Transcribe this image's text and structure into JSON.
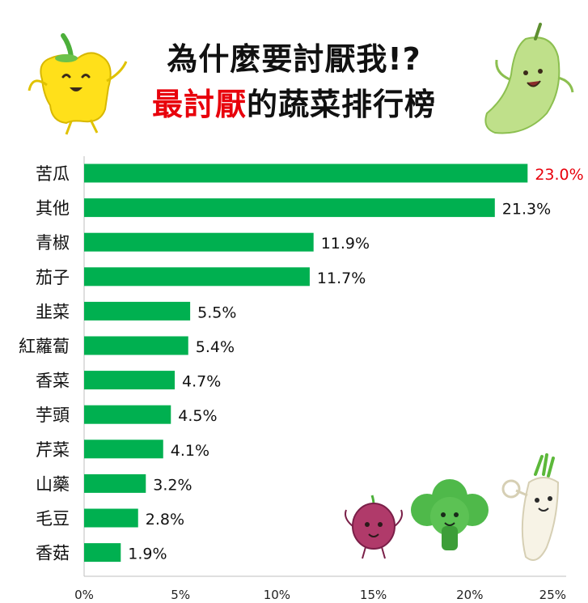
{
  "title": {
    "line1": "為什麼要討厭我!?",
    "line2_highlight": "最討厭",
    "line2_rest": "的蔬菜排行榜"
  },
  "colors": {
    "bar": "#00b050",
    "highlight_label": "#e8000b",
    "title_highlight": "#e8000b",
    "axis": "#bfbfbf"
  },
  "chart_data": {
    "type": "bar",
    "orientation": "horizontal",
    "categories": [
      "苦瓜",
      "其他",
      "青椒",
      "茄子",
      "韭菜",
      "紅蘿蔔",
      "香菜",
      "芋頭",
      "芹菜",
      "山藥",
      "毛豆",
      "香菇"
    ],
    "values": [
      23.0,
      21.3,
      11.9,
      11.7,
      5.5,
      5.4,
      4.7,
      4.5,
      4.1,
      3.2,
      2.8,
      1.9
    ],
    "data_labels": [
      "23.0%",
      "21.3%",
      "11.9%",
      "11.7%",
      "5.5%",
      "5.4%",
      "4.7%",
      "4.5%",
      "4.1%",
      "3.2%",
      "2.8%",
      "1.9%"
    ],
    "highlight_index": 0,
    "xlim": [
      0,
      25
    ],
    "xticks": [
      0,
      5,
      10,
      15,
      20,
      25
    ],
    "xtick_labels": [
      "0%",
      "5%",
      "10%",
      "15%",
      "20%",
      "25%"
    ],
    "grid": false,
    "legend": "none"
  },
  "illustrations": {
    "top_left": "yellow-bell-pepper-character",
    "top_right": "bitter-melon-character",
    "bottom_right": [
      "onion-character",
      "broccoli-character",
      "daikon-radish-character"
    ]
  }
}
